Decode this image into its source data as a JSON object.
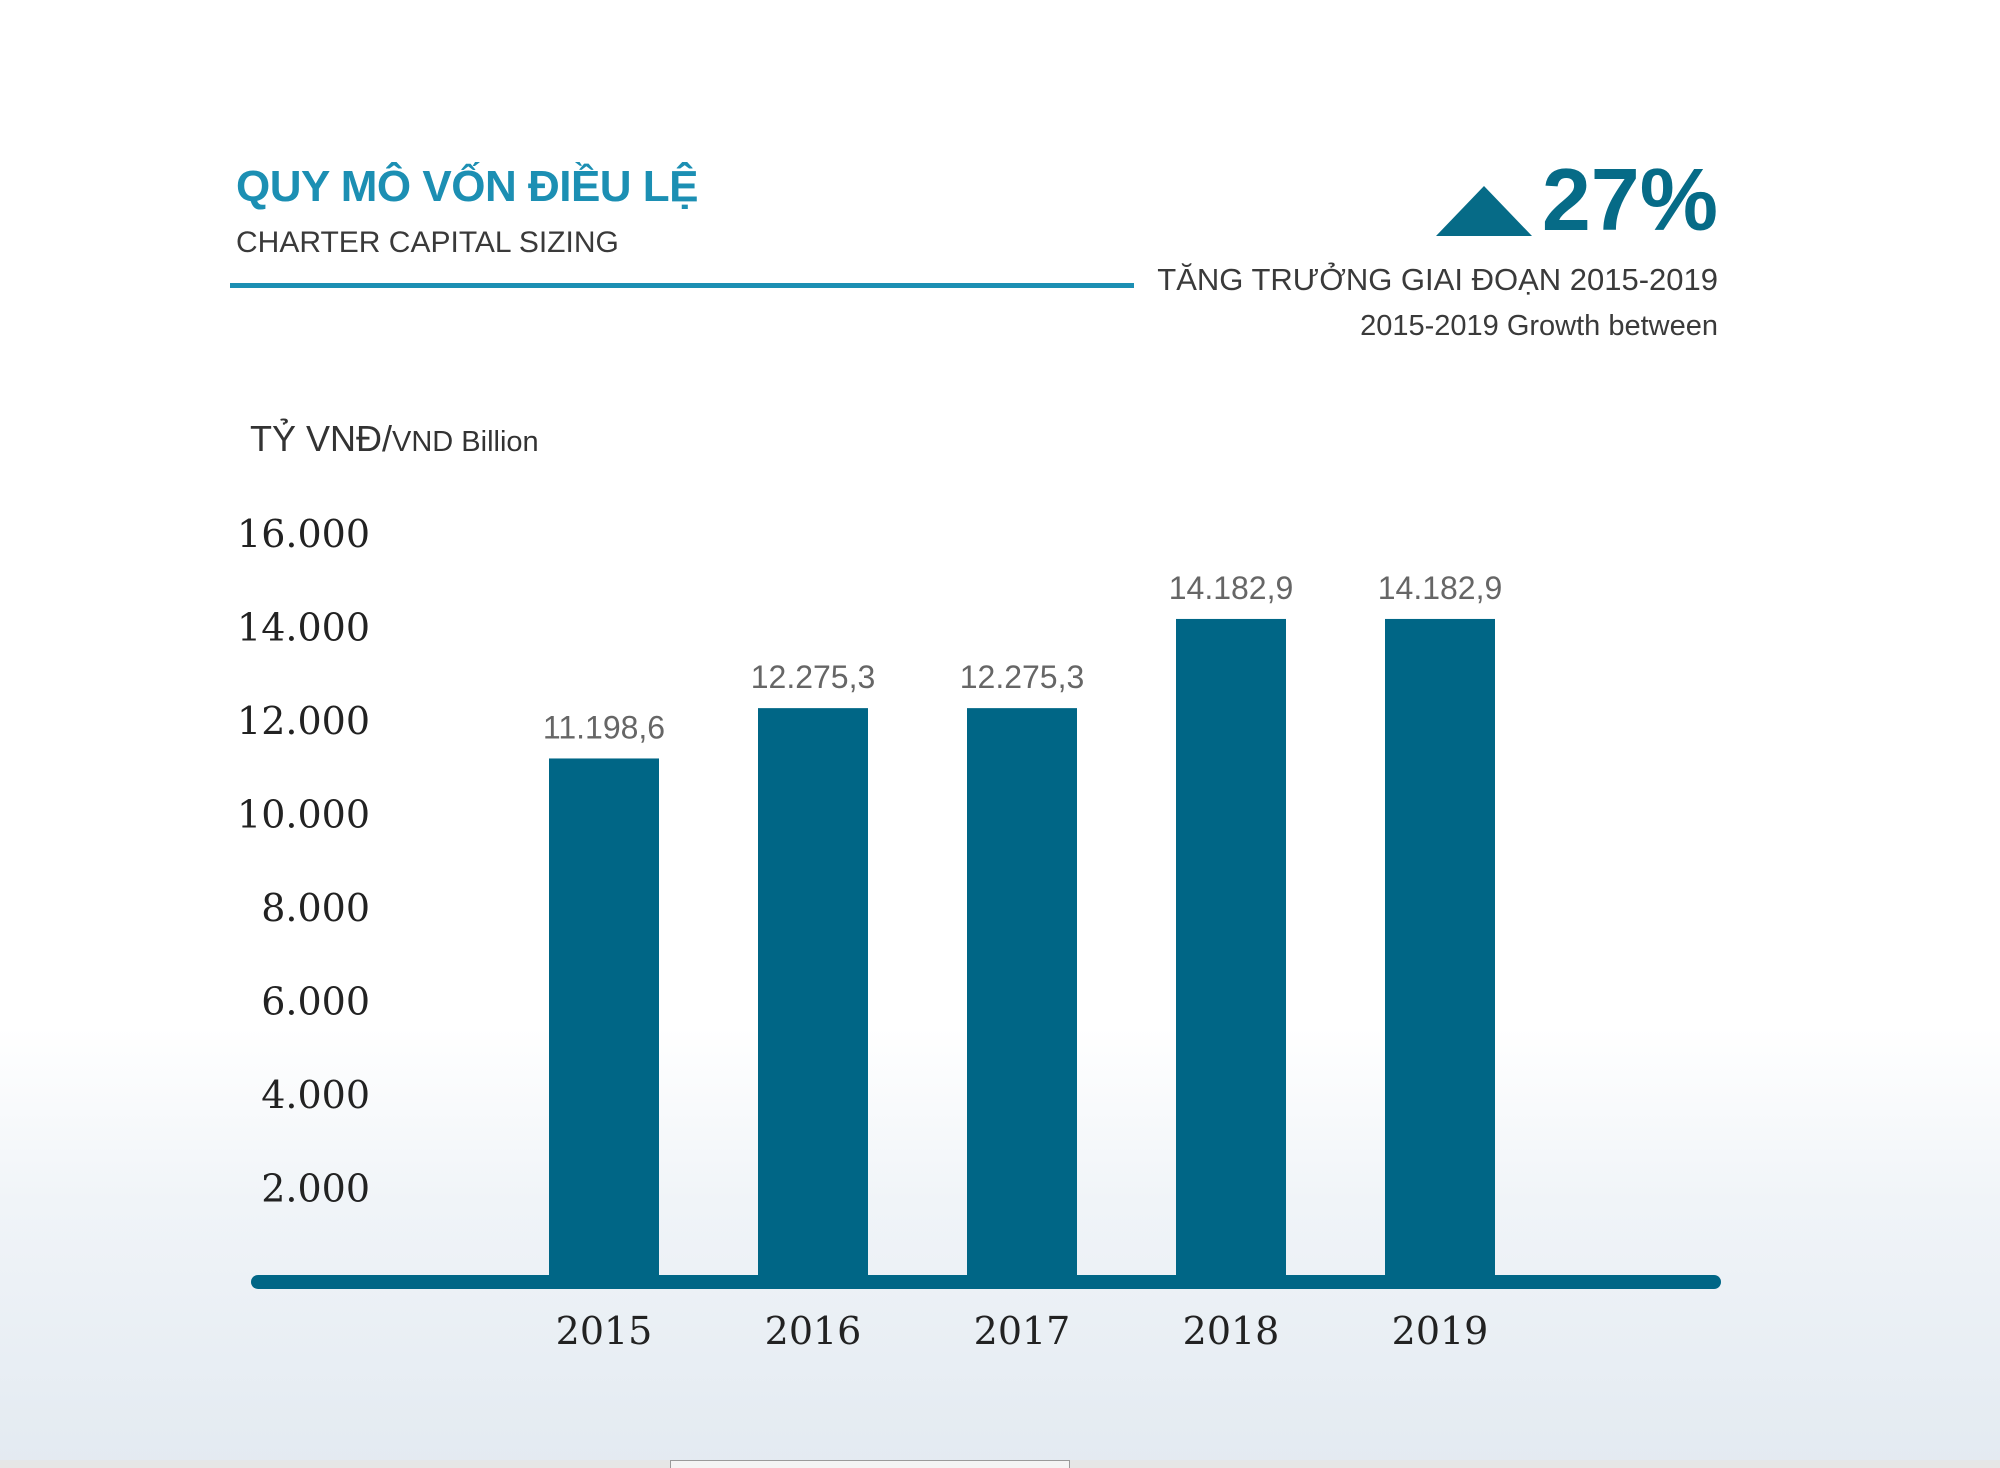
{
  "header": {
    "title_vn": "QUY MÔ VỐN ĐIỀU LỆ",
    "title_en": "CHARTER CAPITAL SIZING"
  },
  "growth": {
    "value": "27%",
    "label_vn": "TĂNG TRƯỞNG GIAI ĐOẠN 2015-2019",
    "label_en": "2015-2019 Growth between",
    "icon": "up-triangle-icon"
  },
  "unit": {
    "main": "TỶ VNĐ/",
    "small": "VND Billion"
  },
  "colors": {
    "accent": "#1c8fb3",
    "bar": "#006686",
    "axis": "#006686"
  },
  "chart_data": {
    "type": "bar",
    "categories": [
      "2015",
      "2016",
      "2017",
      "2018",
      "2019"
    ],
    "values": [
      11198.6,
      12275.3,
      12275.3,
      14182.9,
      14182.9
    ],
    "value_labels": [
      "11.198,6",
      "12.275,3",
      "12.275,3",
      "14.182,9",
      "14.182,9"
    ],
    "y_ticks": [
      2000,
      4000,
      6000,
      8000,
      10000,
      12000,
      14000,
      16000
    ],
    "y_tick_labels": [
      "2.000",
      "4.000",
      "6.000",
      "8.000",
      "10.000",
      "12.000",
      "14.000",
      "16.000"
    ],
    "ylim": [
      0,
      16000
    ],
    "ylabel": "TỶ VNĐ/VND Billion",
    "grid": false,
    "legend": "none"
  }
}
